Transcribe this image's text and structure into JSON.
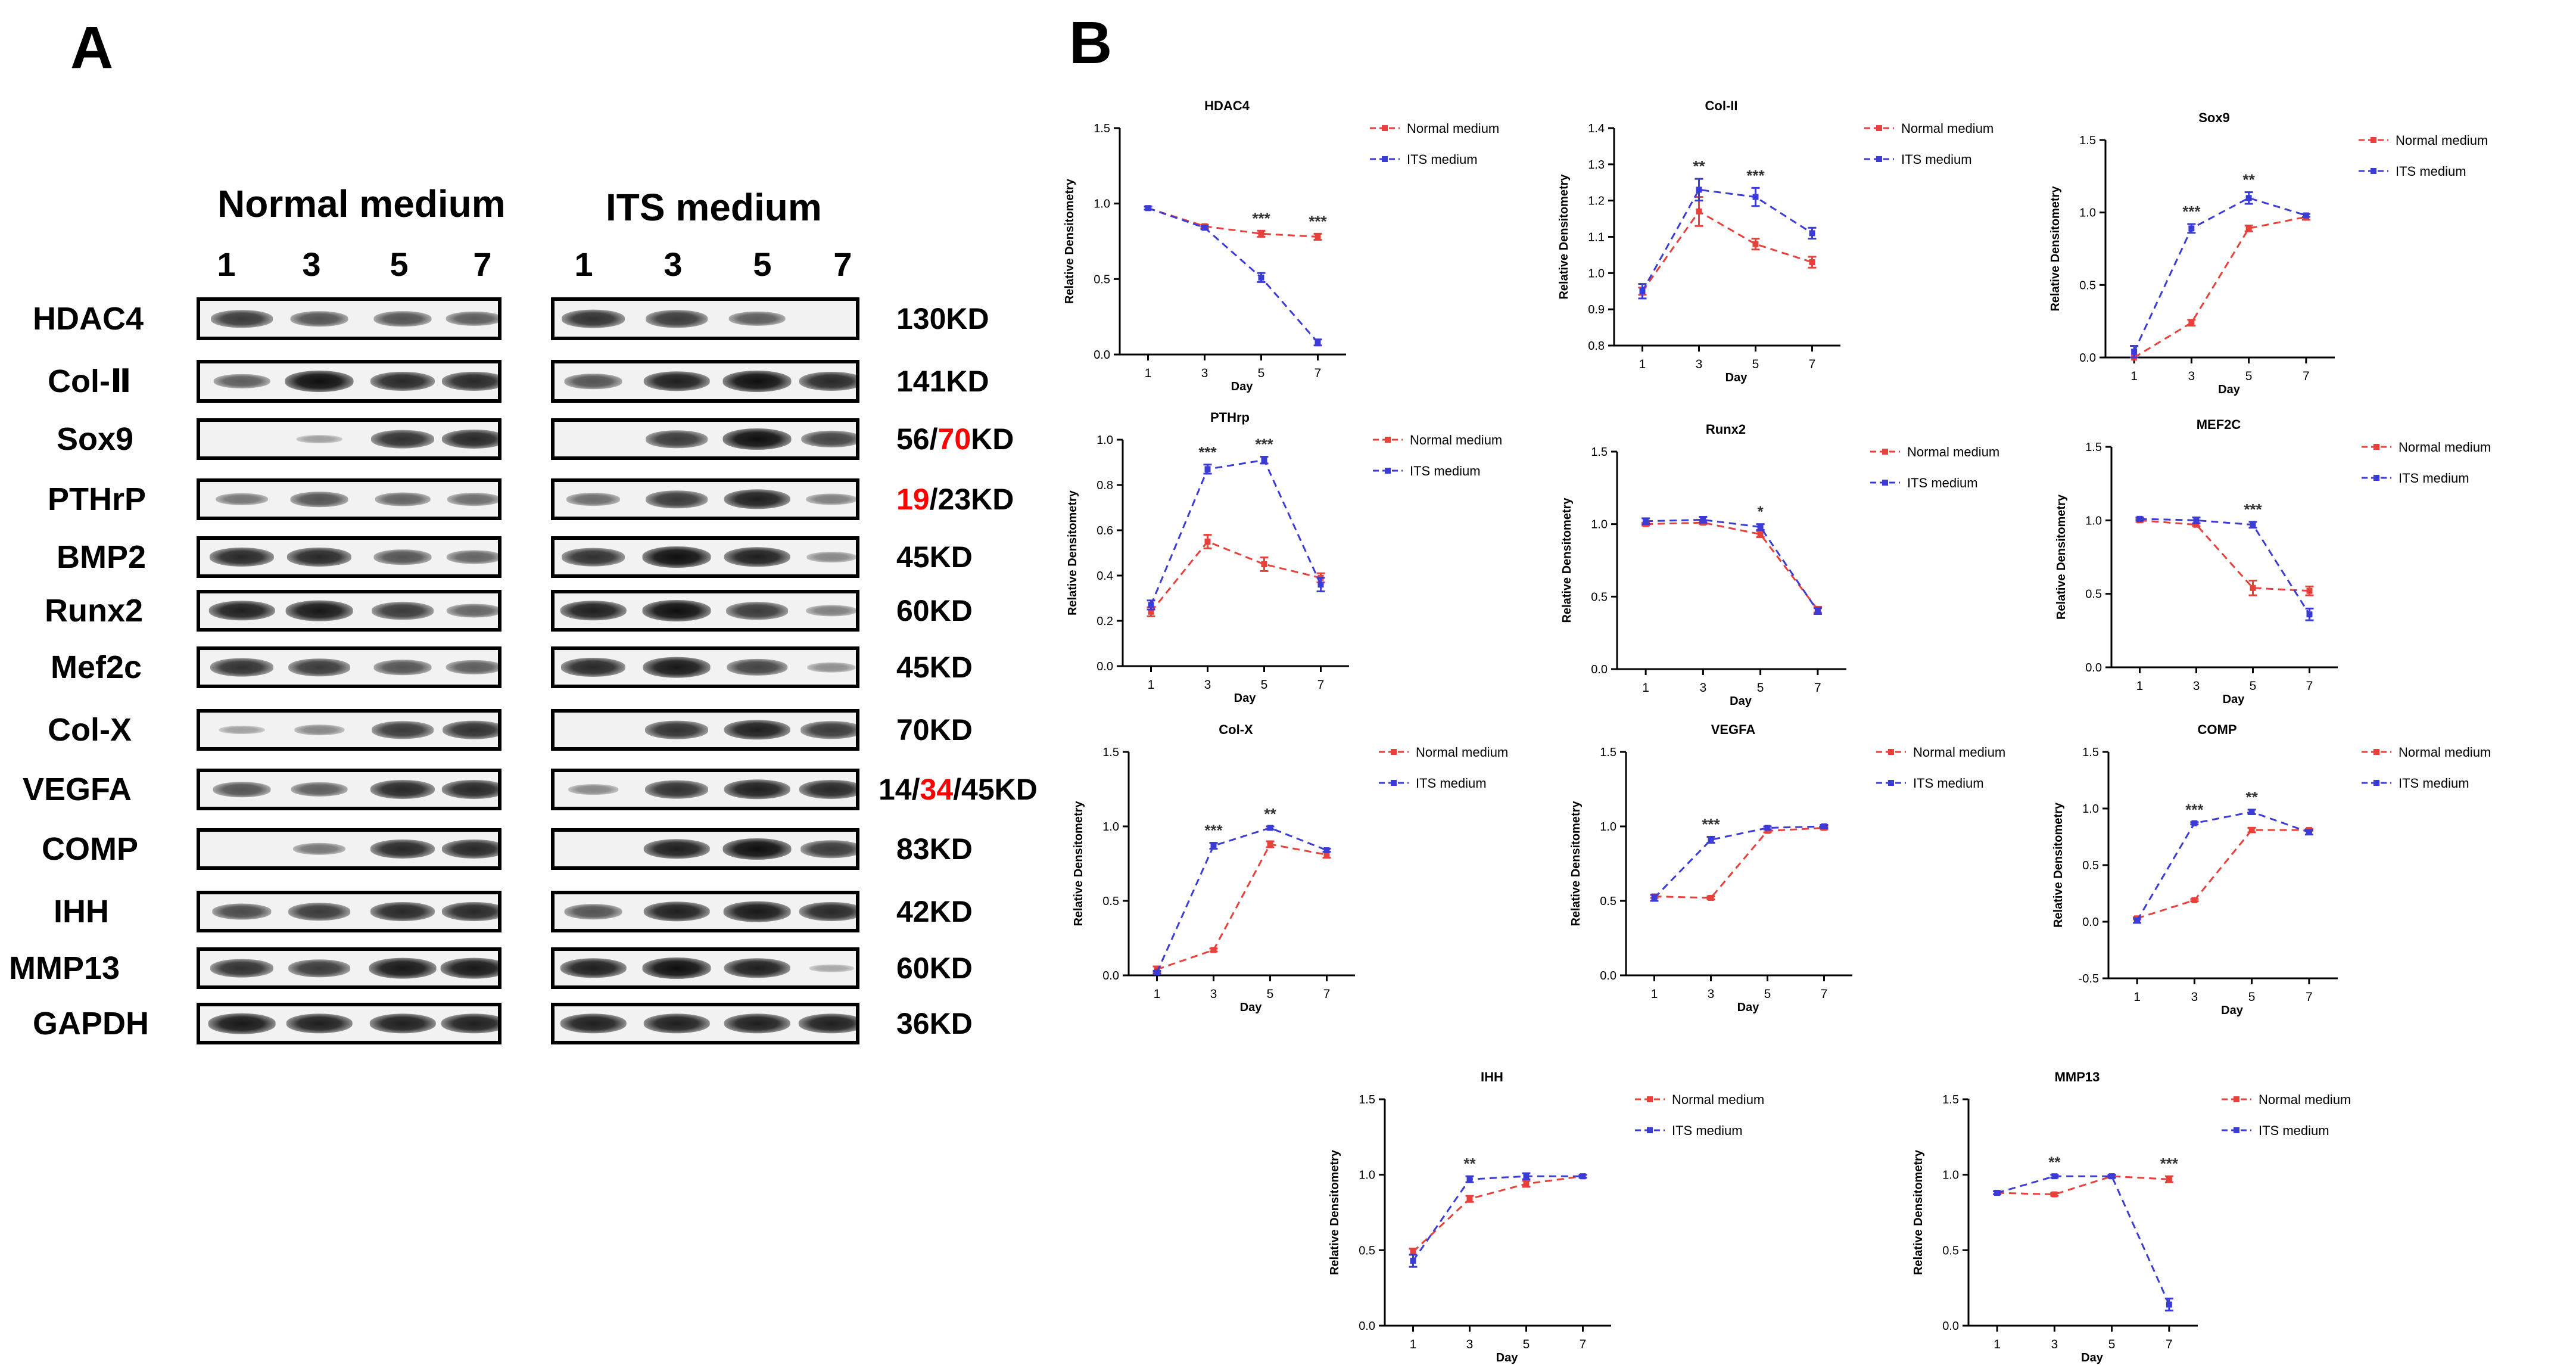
{
  "panel_a": {
    "label": "A",
    "groups": [
      {
        "title": "Normal medium",
        "lanes": [
          "1",
          "3",
          "5",
          "7"
        ]
      },
      {
        "title": "ITS medium",
        "lanes": [
          "1",
          "3",
          "5",
          "7"
        ]
      }
    ],
    "rows": [
      {
        "protein": "HDAC4",
        "mw": [
          "130KD"
        ],
        "normal": [
          0.75,
          0.6,
          0.6,
          0.55
        ],
        "its": [
          0.8,
          0.75,
          0.55,
          0.0
        ]
      },
      {
        "protein": "Col-Ⅱ",
        "mw": [
          "141KD"
        ],
        "normal": [
          0.55,
          1.0,
          0.85,
          0.85
        ],
        "its": [
          0.6,
          0.9,
          1.0,
          0.85
        ]
      },
      {
        "protein": "Sox9",
        "mw": [
          "56/",
          "70",
          "KD"
        ],
        "normal": [
          0.0,
          0.15,
          0.8,
          0.85
        ],
        "its": [
          0.0,
          0.75,
          1.0,
          0.7
        ]
      },
      {
        "protein": "PTHrP",
        "mw": [
          "19",
          "/23KD"
        ],
        "normal": [
          0.4,
          0.6,
          0.5,
          0.45
        ],
        "its": [
          0.45,
          0.75,
          0.9,
          0.35
        ]
      },
      {
        "protein": "BMP2",
        "mw": [
          "45KD"
        ],
        "normal": [
          0.85,
          0.85,
          0.6,
          0.5
        ],
        "its": [
          0.8,
          1.0,
          0.9,
          0.3
        ]
      },
      {
        "protein": "Runx2",
        "mw": [
          "60KD"
        ],
        "normal": [
          0.9,
          0.95,
          0.75,
          0.5
        ],
        "its": [
          0.9,
          1.0,
          0.75,
          0.35
        ]
      },
      {
        "protein": "Mef2c",
        "mw": [
          "45KD"
        ],
        "normal": [
          0.8,
          0.75,
          0.6,
          0.55
        ],
        "its": [
          0.85,
          0.95,
          0.7,
          0.25
        ]
      },
      {
        "protein": "Col-X",
        "mw": [
          "70KD"
        ],
        "normal": [
          0.15,
          0.3,
          0.75,
          0.8
        ],
        "its": [
          0.0,
          0.8,
          0.9,
          0.75
        ]
      },
      {
        "protein": "VEGFA",
        "mw": [
          "14/",
          "34",
          "/45KD"
        ],
        "normal": [
          0.6,
          0.55,
          0.85,
          0.85
        ],
        "its": [
          0.3,
          0.8,
          0.9,
          0.85
        ]
      },
      {
        "protein": "COMP",
        "mw": [
          "83KD"
        ],
        "normal": [
          0.0,
          0.4,
          0.85,
          0.85
        ],
        "its": [
          0.0,
          0.9,
          1.0,
          0.75
        ]
      },
      {
        "protein": "IHH",
        "mw": [
          "42KD"
        ],
        "normal": [
          0.65,
          0.75,
          0.85,
          0.85
        ],
        "its": [
          0.6,
          0.9,
          0.95,
          0.85
        ]
      },
      {
        "protein": "MMP13",
        "mw": [
          "60KD"
        ],
        "normal": [
          0.8,
          0.75,
          0.95,
          0.95
        ],
        "its": [
          0.9,
          1.0,
          0.9,
          0.1
        ]
      },
      {
        "protein": "GAPDH",
        "mw": [
          "36KD"
        ],
        "normal": [
          0.95,
          0.9,
          0.9,
          0.9
        ],
        "its": [
          0.9,
          0.9,
          0.9,
          0.9
        ]
      }
    ]
  },
  "panel_b": {
    "label": "B"
  },
  "colors": {
    "normal": "#e8403a",
    "its": "#3b3bd6",
    "axis": "#000000",
    "highlight": "#ff0000"
  },
  "chart_data": [
    {
      "type": "line",
      "title": "HDAC4",
      "xlabel": "Day",
      "ylabel": "Relative Densitometry",
      "x": [
        1,
        3,
        5,
        7
      ],
      "ylim": [
        0,
        1.5
      ],
      "yticks": [
        0.0,
        0.5,
        1.0,
        1.5
      ],
      "series": [
        {
          "name": "Normal medium",
          "values": [
            0.97,
            0.85,
            0.8,
            0.78
          ],
          "errors": [
            0.01,
            0.01,
            0.02,
            0.02
          ]
        },
        {
          "name": "ITS medium",
          "values": [
            0.97,
            0.84,
            0.51,
            0.08
          ],
          "errors": [
            0.01,
            0.01,
            0.03,
            0.02
          ]
        }
      ],
      "annotations": [
        {
          "x": 5,
          "text": "***"
        },
        {
          "x": 7,
          "text": "***"
        }
      ]
    },
    {
      "type": "line",
      "title": "Col-II",
      "xlabel": "Day",
      "ylabel": "Relative Densitometry",
      "x": [
        1,
        3,
        5,
        7
      ],
      "ylim": [
        0.8,
        1.4
      ],
      "yticks": [
        0.8,
        0.9,
        1.0,
        1.1,
        1.2,
        1.3,
        1.4
      ],
      "series": [
        {
          "name": "Normal medium",
          "values": [
            0.95,
            1.17,
            1.08,
            1.03
          ],
          "errors": [
            0.01,
            0.04,
            0.015,
            0.015
          ]
        },
        {
          "name": "ITS medium",
          "values": [
            0.95,
            1.23,
            1.21,
            1.11
          ],
          "errors": [
            0.02,
            0.03,
            0.025,
            0.015
          ]
        }
      ],
      "annotations": [
        {
          "x": 3,
          "text": "**"
        },
        {
          "x": 5,
          "text": "***"
        }
      ]
    },
    {
      "type": "line",
      "title": "Sox9",
      "xlabel": "Day",
      "ylabel": "Relative Densitometry",
      "x": [
        1,
        3,
        5,
        7
      ],
      "ylim": [
        0,
        1.5
      ],
      "yticks": [
        0.0,
        0.5,
        1.0,
        1.5
      ],
      "series": [
        {
          "name": "Normal medium",
          "values": [
            0.0,
            0.24,
            0.89,
            0.97
          ],
          "errors": [
            0.0,
            0.02,
            0.02,
            0.02
          ]
        },
        {
          "name": "ITS medium",
          "values": [
            0.04,
            0.89,
            1.1,
            0.98
          ],
          "errors": [
            0.04,
            0.03,
            0.04,
            0.01
          ]
        }
      ],
      "annotations": [
        {
          "x": 3,
          "text": "***"
        },
        {
          "x": 5,
          "text": "**"
        }
      ]
    },
    {
      "type": "line",
      "title": "PTHrp",
      "xlabel": "Day",
      "ylabel": "Relative Densitometry",
      "x": [
        1,
        3,
        5,
        7
      ],
      "ylim": [
        0,
        1.0
      ],
      "yticks": [
        0.0,
        0.2,
        0.4,
        0.6,
        0.8,
        1.0
      ],
      "series": [
        {
          "name": "Normal medium",
          "values": [
            0.24,
            0.55,
            0.45,
            0.39
          ],
          "errors": [
            0.02,
            0.03,
            0.03,
            0.02
          ]
        },
        {
          "name": "ITS medium",
          "values": [
            0.27,
            0.87,
            0.91,
            0.36
          ],
          "errors": [
            0.02,
            0.02,
            0.015,
            0.03
          ]
        }
      ],
      "annotations": [
        {
          "x": 3,
          "text": "***"
        },
        {
          "x": 5,
          "text": "***"
        }
      ]
    },
    {
      "type": "line",
      "title": "Runx2",
      "xlabel": "Day",
      "ylabel": "Relative Densitometry",
      "x": [
        1,
        3,
        5,
        7
      ],
      "ylim": [
        0,
        1.5
      ],
      "yticks": [
        0.0,
        0.5,
        1.0,
        1.5
      ],
      "series": [
        {
          "name": "Normal medium",
          "values": [
            1.0,
            1.01,
            0.93,
            0.41
          ],
          "errors": [
            0.01,
            0.01,
            0.02,
            0.02
          ]
        },
        {
          "name": "ITS medium",
          "values": [
            1.02,
            1.03,
            0.98,
            0.4
          ],
          "errors": [
            0.02,
            0.02,
            0.02,
            0.02
          ]
        }
      ],
      "annotations": [
        {
          "x": 5,
          "text": "*"
        }
      ]
    },
    {
      "type": "line",
      "title": "MEF2C",
      "xlabel": "Day",
      "ylabel": "Relative Densitometry",
      "x": [
        1,
        3,
        5,
        7
      ],
      "ylim": [
        0,
        1.5
      ],
      "yticks": [
        0.0,
        0.5,
        1.0,
        1.5
      ],
      "series": [
        {
          "name": "Normal medium",
          "values": [
            1.0,
            0.97,
            0.54,
            0.52
          ],
          "errors": [
            0.01,
            0.01,
            0.05,
            0.03
          ]
        },
        {
          "name": "ITS medium",
          "values": [
            1.01,
            1.0,
            0.97,
            0.36
          ],
          "errors": [
            0.01,
            0.02,
            0.02,
            0.04
          ]
        }
      ],
      "annotations": [
        {
          "x": 5,
          "text": "***"
        }
      ]
    },
    {
      "type": "line",
      "title": "Col-X",
      "xlabel": "Day",
      "ylabel": "Relative Densitometry",
      "x": [
        1,
        3,
        5,
        7
      ],
      "ylim": [
        0,
        1.5
      ],
      "yticks": [
        0.0,
        0.5,
        1.0,
        1.5
      ],
      "series": [
        {
          "name": "Normal medium",
          "values": [
            0.04,
            0.17,
            0.88,
            0.81
          ],
          "errors": [
            0.02,
            0.01,
            0.02,
            0.02
          ]
        },
        {
          "name": "ITS medium",
          "values": [
            0.02,
            0.87,
            0.99,
            0.84
          ],
          "errors": [
            0.01,
            0.02,
            0.01,
            0.01
          ]
        }
      ],
      "annotations": [
        {
          "x": 3,
          "text": "***"
        },
        {
          "x": 5,
          "text": "**"
        }
      ]
    },
    {
      "type": "line",
      "title": "VEGFA",
      "xlabel": "Day",
      "ylabel": "Relative Densitometry",
      "x": [
        1,
        3,
        5,
        7
      ],
      "ylim": [
        0,
        1.5
      ],
      "yticks": [
        0.0,
        0.5,
        1.0,
        1.5
      ],
      "series": [
        {
          "name": "Normal medium",
          "values": [
            0.53,
            0.52,
            0.97,
            0.99
          ],
          "errors": [
            0.01,
            0.01,
            0.01,
            0.01
          ]
        },
        {
          "name": "ITS medium",
          "values": [
            0.52,
            0.91,
            0.99,
            1.0
          ],
          "errors": [
            0.02,
            0.02,
            0.01,
            0.01
          ]
        }
      ],
      "annotations": [
        {
          "x": 3,
          "text": "***"
        }
      ]
    },
    {
      "type": "line",
      "title": "COMP",
      "xlabel": "Day",
      "ylabel": "Relative Densitometry",
      "x": [
        1,
        3,
        5,
        7
      ],
      "ylim": [
        -0.5,
        1.5
      ],
      "yticks": [
        -0.5,
        0.0,
        0.5,
        1.0,
        1.5
      ],
      "series": [
        {
          "name": "Normal medium",
          "values": [
            0.03,
            0.19,
            0.81,
            0.81
          ],
          "errors": [
            0.01,
            0.01,
            0.02,
            0.01
          ]
        },
        {
          "name": "ITS medium",
          "values": [
            0.01,
            0.87,
            0.97,
            0.79
          ],
          "errors": [
            0.02,
            0.01,
            0.02,
            0.02
          ]
        }
      ],
      "annotations": [
        {
          "x": 3,
          "text": "***"
        },
        {
          "x": 5,
          "text": "**"
        }
      ]
    },
    {
      "type": "line",
      "title": "IHH",
      "xlabel": "Day",
      "ylabel": "Relative Densitometry",
      "x": [
        1,
        3,
        5,
        7
      ],
      "ylim": [
        0,
        1.5
      ],
      "yticks": [
        0.0,
        0.5,
        1.0,
        1.5
      ],
      "series": [
        {
          "name": "Normal medium",
          "values": [
            0.49,
            0.84,
            0.94,
            0.99
          ],
          "errors": [
            0.02,
            0.02,
            0.02,
            0.01
          ]
        },
        {
          "name": "ITS medium",
          "values": [
            0.43,
            0.97,
            0.99,
            0.99
          ],
          "errors": [
            0.04,
            0.02,
            0.02,
            0.01
          ]
        }
      ],
      "annotations": [
        {
          "x": 3,
          "text": "**"
        }
      ]
    },
    {
      "type": "line",
      "title": "MMP13",
      "xlabel": "Day",
      "ylabel": "Relative Densitometry",
      "x": [
        1,
        3,
        5,
        7
      ],
      "ylim": [
        0,
        1.5
      ],
      "yticks": [
        0.0,
        0.5,
        1.0,
        1.5
      ],
      "series": [
        {
          "name": "Normal medium",
          "values": [
            0.88,
            0.87,
            0.99,
            0.97
          ],
          "errors": [
            0.01,
            0.01,
            0.01,
            0.02
          ]
        },
        {
          "name": "ITS medium",
          "values": [
            0.88,
            0.99,
            0.99,
            0.14
          ],
          "errors": [
            0.01,
            0.01,
            0.01,
            0.04
          ]
        }
      ],
      "annotations": [
        {
          "x": 3,
          "text": "**"
        },
        {
          "x": 7,
          "text": "***"
        }
      ]
    }
  ]
}
